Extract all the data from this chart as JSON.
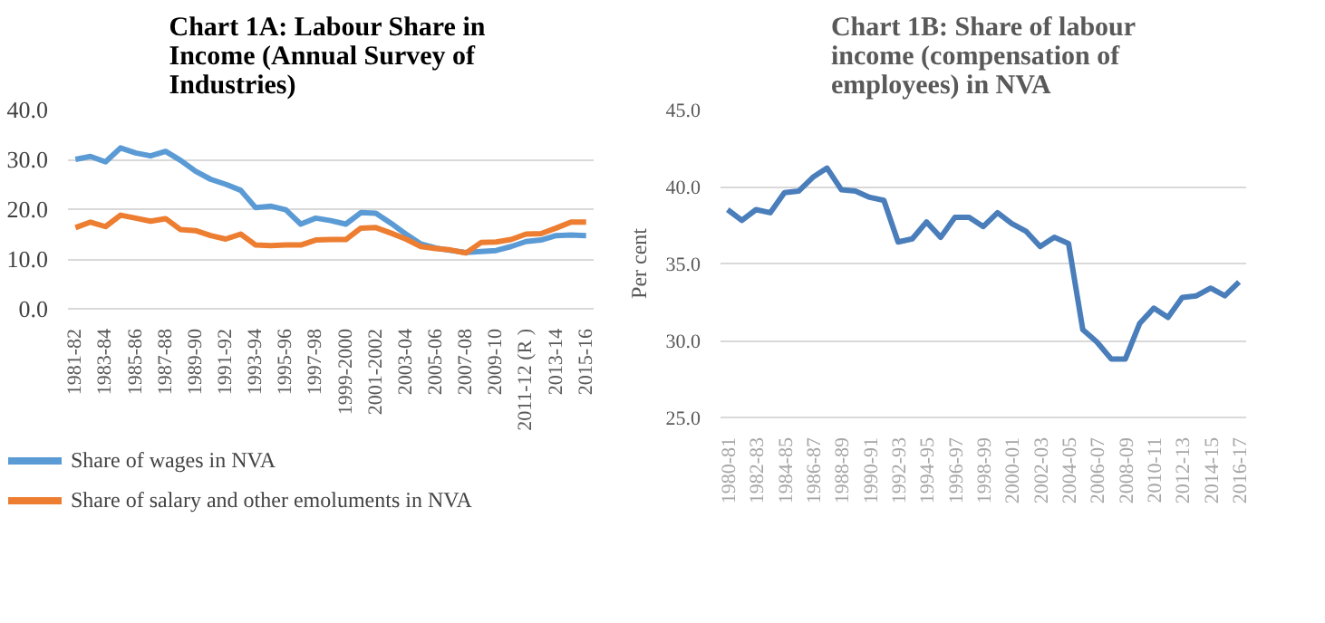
{
  "chart_data": [
    {
      "type": "line",
      "title": "Chart  1A: Labour Share in Income (Annual Survey of Industries)",
      "categories": [
        "1981-82",
        null,
        "1983-84",
        null,
        "1985-86",
        null,
        "1987-88",
        null,
        "1989-90",
        null,
        "1991-92",
        null,
        "1993-94",
        null,
        "1995-96",
        null,
        "1997-98",
        null,
        "1999-2000",
        null,
        "2001-2002",
        null,
        "2003-04",
        null,
        "2005-06",
        null,
        "2007-08",
        null,
        "2009-10",
        null,
        "2011-12 (R )",
        null,
        "2013-14",
        null,
        "2015-16"
      ],
      "series": [
        {
          "name": "Share of wages in NVA",
          "color": "#5b9bd5",
          "values": [
            30.0,
            30.6,
            29.5,
            32.3,
            31.3,
            30.7,
            31.6,
            29.8,
            27.6,
            26.0,
            25.0,
            23.8,
            20.3,
            20.6,
            19.9,
            17.0,
            18.2,
            17.7,
            17.0,
            19.3,
            19.2,
            17.2,
            15.0,
            13.0,
            12.2,
            11.7,
            11.3,
            11.5,
            11.7,
            12.5,
            13.5,
            13.8,
            14.7,
            14.8,
            14.7
          ]
        },
        {
          "name": "Share of salary and other emoluments in NVA",
          "color": "#ed7d31",
          "values": [
            16.3,
            17.4,
            16.5,
            18.8,
            18.2,
            17.6,
            18.1,
            15.9,
            15.7,
            14.7,
            14.0,
            15.0,
            12.8,
            12.7,
            12.8,
            12.8,
            13.8,
            13.9,
            13.9,
            16.2,
            16.3,
            15.2,
            14.0,
            12.5,
            12.1,
            11.8,
            11.2,
            13.3,
            13.4,
            13.9,
            15.0,
            15.1,
            16.2,
            17.4,
            17.4
          ]
        }
      ],
      "ylim": [
        0,
        40
      ],
      "yticks": [
        {
          "value": 0,
          "label": "0.0"
        },
        {
          "value": 10,
          "label": "10.0"
        },
        {
          "value": 20,
          "label": "20.0"
        },
        {
          "value": 30,
          "label": "30.0"
        },
        {
          "value": 40,
          "label": "40.0"
        }
      ],
      "grid": "y",
      "legend": "bottom"
    },
    {
      "type": "line",
      "title": "Chart 1B: Share of labour income (compensation of employees)  in NVA",
      "ylabel": "Per cent",
      "categories": [
        "1980-81",
        null,
        "1982-83",
        null,
        "1984-85",
        null,
        "1986-87",
        null,
        "1988-89",
        null,
        "1990-91",
        null,
        "1992-93",
        null,
        "1994-95",
        null,
        "1996-97",
        null,
        "1998-99",
        null,
        "2000-01",
        null,
        "2002-03",
        null,
        "2004-05",
        null,
        "2006-07",
        null,
        "2008-09",
        null,
        "2010-11",
        null,
        "2012-13",
        null,
        "2014-15",
        null,
        "2016-17"
      ],
      "series": [
        {
          "color": "#4a7ebb",
          "values": [
            38.5,
            37.8,
            38.5,
            38.3,
            39.6,
            39.7,
            40.6,
            41.2,
            39.8,
            39.7,
            39.3,
            39.1,
            36.4,
            36.6,
            37.7,
            36.7,
            38.0,
            38.0,
            37.4,
            38.3,
            37.6,
            37.1,
            36.1,
            36.7,
            36.3,
            30.7,
            29.9,
            28.8,
            28.8,
            31.1,
            32.1,
            31.5,
            32.8,
            32.9,
            33.4,
            32.9,
            33.8
          ]
        }
      ],
      "ylim": [
        25,
        45
      ],
      "yticks": [
        {
          "value": 25,
          "label": "25.0"
        },
        {
          "value": 30,
          "label": "30.0"
        },
        {
          "value": 35,
          "label": "35.0"
        },
        {
          "value": 40,
          "label": "40.0"
        },
        {
          "value": 45,
          "label": "45.0"
        }
      ],
      "grid": "y"
    }
  ]
}
